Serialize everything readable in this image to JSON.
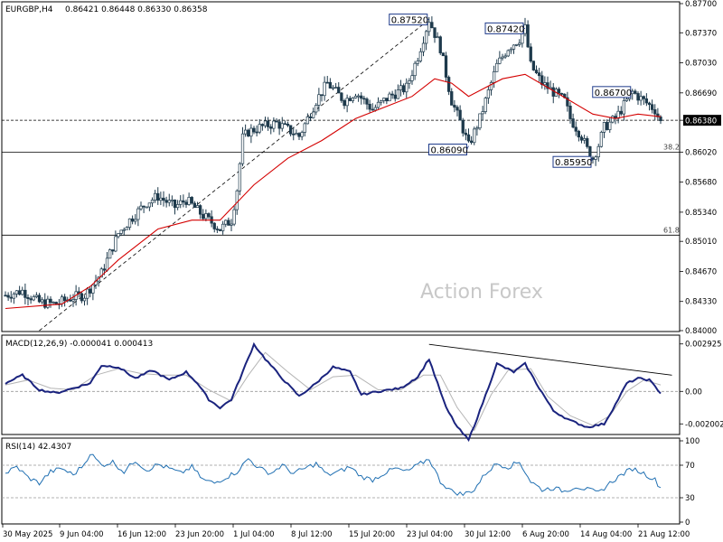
{
  "chart_data": [
    {
      "type": "candlestick",
      "title": "EURGBP,H4",
      "quote": "0.86421 0.86448 0.86330 0.86358",
      "price_range": [
        0.84,
        0.877
      ],
      "y_ticks": [
        "0.87700",
        "0.87370",
        "0.87030",
        "0.86690",
        "0.86380",
        "0.86020",
        "0.85680",
        "0.85340",
        "0.85010",
        "0.84670",
        "0.84330",
        "0.84000"
      ],
      "current_price_label": "0.86380",
      "x_tick_labels": [
        "30 May 2025",
        "9 Jun 04:00",
        "16 Jun 12:00",
        "23 Jun 20:00",
        "1 Jul 04:00",
        "8 Jul 12:00",
        "15 Jul 20:00",
        "23 Jul 04:00",
        "30 Jul 12:00",
        "6 Aug 20:00",
        "14 Aug 04:00",
        "21 Aug 12:00"
      ],
      "price_path": [
        [
          0,
          0.844
        ],
        [
          3,
          0.8445
        ],
        [
          6,
          0.8432
        ],
        [
          9,
          0.843
        ],
        [
          12,
          0.8438
        ],
        [
          14,
          0.844
        ],
        [
          17,
          0.8465
        ],
        [
          20,
          0.851
        ],
        [
          22,
          0.8525
        ],
        [
          25,
          0.8545
        ],
        [
          27,
          0.8552
        ],
        [
          30,
          0.854
        ],
        [
          32,
          0.8548
        ],
        [
          35,
          0.853
        ],
        [
          38,
          0.8515
        ],
        [
          40,
          0.8525
        ],
        [
          41,
          0.856
        ],
        [
          42,
          0.8618
        ],
        [
          43,
          0.8625
        ],
        [
          45,
          0.863
        ],
        [
          48,
          0.8635
        ],
        [
          52,
          0.862
        ],
        [
          55,
          0.866
        ],
        [
          57,
          0.868
        ],
        [
          60,
          0.866
        ],
        [
          62,
          0.867
        ],
        [
          65,
          0.865
        ],
        [
          68,
          0.8665
        ],
        [
          71,
          0.8675
        ],
        [
          73,
          0.871
        ],
        [
          75,
          0.8752
        ],
        [
          77,
          0.872
        ],
        [
          79,
          0.866
        ],
        [
          81,
          0.8628
        ],
        [
          82,
          0.8609
        ],
        [
          84,
          0.864
        ],
        [
          87,
          0.87
        ],
        [
          89,
          0.872
        ],
        [
          91,
          0.873
        ],
        [
          92,
          0.8742
        ],
        [
          93,
          0.87
        ],
        [
          95,
          0.868
        ],
        [
          97,
          0.867
        ],
        [
          99,
          0.866
        ],
        [
          100,
          0.864
        ],
        [
          102,
          0.862
        ],
        [
          103,
          0.8605
        ],
        [
          104,
          0.8595
        ],
        [
          105,
          0.861
        ],
        [
          106,
          0.863
        ],
        [
          108,
          0.864
        ],
        [
          110,
          0.866
        ],
        [
          111,
          0.867
        ],
        [
          113,
          0.866
        ],
        [
          115,
          0.865
        ],
        [
          116,
          0.8636
        ]
      ],
      "ma_path": [
        [
          0,
          0.8425
        ],
        [
          10,
          0.843
        ],
        [
          15,
          0.845
        ],
        [
          20,
          0.848
        ],
        [
          27,
          0.8515
        ],
        [
          33,
          0.8525
        ],
        [
          38,
          0.8525
        ],
        [
          44,
          0.8565
        ],
        [
          50,
          0.8595
        ],
        [
          56,
          0.8615
        ],
        [
          62,
          0.864
        ],
        [
          68,
          0.8655
        ],
        [
          72,
          0.8665
        ],
        [
          76,
          0.8685
        ],
        [
          79,
          0.868
        ],
        [
          82,
          0.8665
        ],
        [
          85,
          0.8675
        ],
        [
          88,
          0.8685
        ],
        [
          92,
          0.869
        ],
        [
          96,
          0.8675
        ],
        [
          100,
          0.866
        ],
        [
          104,
          0.8645
        ],
        [
          108,
          0.864
        ],
        [
          112,
          0.8645
        ],
        [
          116,
          0.8642
        ]
      ],
      "annotations": [
        {
          "label": "0.87520",
          "bar": 75,
          "price": 0.8752
        },
        {
          "label": "0.87420",
          "bar": 92,
          "price": 0.8742
        },
        {
          "label": "0.86700",
          "bar": 111,
          "price": 0.867
        },
        {
          "label": "0.86090",
          "bar": 82,
          "price": 0.8609
        },
        {
          "label": "0.85950",
          "bar": 104,
          "price": 0.8595
        }
      ],
      "fib_levels": [
        {
          "label": "38.2",
          "price": 0.8602
        },
        {
          "label": "61.8",
          "price": 0.8508
        }
      ],
      "trendline": {
        "from": [
          6,
          0.84
        ],
        "to": [
          75,
          0.8752
        ]
      },
      "watermark": "Action Forex"
    },
    {
      "type": "line",
      "title": "MACD(12,26,9) -0.000041 0.000413",
      "y_ticks": [
        "0.002925",
        "0.00",
        "-0.002002"
      ],
      "range": [
        -0.0026,
        0.0033
      ],
      "macd": [
        [
          0,
          0.0005
        ],
        [
          3,
          0.001
        ],
        [
          6,
          0.0001
        ],
        [
          9,
          -0.0001
        ],
        [
          12,
          0.0002
        ],
        [
          15,
          0.0005
        ],
        [
          17,
          0.0016
        ],
        [
          20,
          0.0015
        ],
        [
          23,
          0.0008
        ],
        [
          26,
          0.0013
        ],
        [
          29,
          0.0007
        ],
        [
          32,
          0.0012
        ],
        [
          34,
          0.0005
        ],
        [
          36,
          -0.0005
        ],
        [
          38,
          -0.001
        ],
        [
          40,
          -0.0005
        ],
        [
          42,
          0.0012
        ],
        [
          44,
          0.0029
        ],
        [
          46,
          0.002
        ],
        [
          49,
          0.0008
        ],
        [
          52,
          -0.0003
        ],
        [
          55,
          0.0005
        ],
        [
          58,
          0.0015
        ],
        [
          61,
          0.0012
        ],
        [
          63,
          -0.0002
        ],
        [
          66,
          0.0
        ],
        [
          70,
          0.0002
        ],
        [
          73,
          0.0009
        ],
        [
          75,
          0.002
        ],
        [
          78,
          -0.001
        ],
        [
          80,
          -0.0022
        ],
        [
          82,
          -0.003
        ],
        [
          84,
          -0.0012
        ],
        [
          87,
          0.0017
        ],
        [
          90,
          0.0012
        ],
        [
          92,
          0.0017
        ],
        [
          94,
          0.0005
        ],
        [
          97,
          -0.0012
        ],
        [
          100,
          -0.0018
        ],
        [
          103,
          -0.0022
        ],
        [
          106,
          -0.002
        ],
        [
          108,
          -0.0008
        ],
        [
          110,
          0.0005
        ],
        [
          112,
          0.0008
        ],
        [
          114,
          0.0007
        ],
        [
          116,
          -0.0001
        ]
      ],
      "signal": [
        [
          0,
          0.0004
        ],
        [
          4,
          0.0007
        ],
        [
          8,
          0.0002
        ],
        [
          12,
          0.0001
        ],
        [
          16,
          0.001
        ],
        [
          20,
          0.0014
        ],
        [
          24,
          0.0011
        ],
        [
          28,
          0.001
        ],
        [
          32,
          0.001
        ],
        [
          36,
          0.0001
        ],
        [
          40,
          -0.0006
        ],
        [
          43,
          0.001
        ],
        [
          46,
          0.0024
        ],
        [
          50,
          0.0012
        ],
        [
          54,
          0.0001
        ],
        [
          58,
          0.0009
        ],
        [
          62,
          0.001
        ],
        [
          66,
          0.0001
        ],
        [
          70,
          0.0001
        ],
        [
          74,
          0.001
        ],
        [
          77,
          0.001
        ],
        [
          80,
          -0.001
        ],
        [
          83,
          -0.0024
        ],
        [
          86,
          -0.0002
        ],
        [
          89,
          0.0013
        ],
        [
          93,
          0.0014
        ],
        [
          96,
          -0.0003
        ],
        [
          100,
          -0.0015
        ],
        [
          104,
          -0.0021
        ],
        [
          107,
          -0.0015
        ],
        [
          110,
          0.0
        ],
        [
          113,
          0.0007
        ],
        [
          116,
          0.0004
        ]
      ],
      "trendline": {
        "from": [
          75,
          0.0029
        ],
        "to": [
          118,
          0.001
        ]
      }
    },
    {
      "type": "line",
      "title": "RSI(14) 42.4307",
      "y_ticks": [
        "100",
        "70",
        "30",
        "0"
      ],
      "range": [
        0,
        100
      ],
      "rsi": [
        [
          0,
          60
        ],
        [
          2,
          68
        ],
        [
          4,
          55
        ],
        [
          6,
          48
        ],
        [
          8,
          62
        ],
        [
          10,
          66
        ],
        [
          12,
          58
        ],
        [
          14,
          72
        ],
        [
          15,
          85
        ],
        [
          17,
          70
        ],
        [
          19,
          74
        ],
        [
          21,
          62
        ],
        [
          23,
          76
        ],
        [
          25,
          64
        ],
        [
          27,
          71
        ],
        [
          29,
          66
        ],
        [
          31,
          60
        ],
        [
          33,
          68
        ],
        [
          35,
          52
        ],
        [
          37,
          48
        ],
        [
          39,
          55
        ],
        [
          41,
          62
        ],
        [
          43,
          78
        ],
        [
          45,
          66
        ],
        [
          47,
          60
        ],
        [
          49,
          70
        ],
        [
          51,
          60
        ],
        [
          53,
          66
        ],
        [
          55,
          72
        ],
        [
          57,
          58
        ],
        [
          59,
          62
        ],
        [
          61,
          68
        ],
        [
          63,
          56
        ],
        [
          65,
          52
        ],
        [
          67,
          60
        ],
        [
          69,
          66
        ],
        [
          71,
          62
        ],
        [
          73,
          70
        ],
        [
          75,
          78
        ],
        [
          77,
          50
        ],
        [
          79,
          38
        ],
        [
          81,
          34
        ],
        [
          83,
          40
        ],
        [
          85,
          60
        ],
        [
          87,
          72
        ],
        [
          89,
          68
        ],
        [
          91,
          74
        ],
        [
          93,
          50
        ],
        [
          95,
          40
        ],
        [
          97,
          42
        ],
        [
          99,
          38
        ],
        [
          101,
          44
        ],
        [
          103,
          40
        ],
        [
          105,
          36
        ],
        [
          107,
          48
        ],
        [
          109,
          58
        ],
        [
          111,
          66
        ],
        [
          113,
          60
        ],
        [
          115,
          52
        ],
        [
          116,
          42
        ]
      ]
    }
  ]
}
